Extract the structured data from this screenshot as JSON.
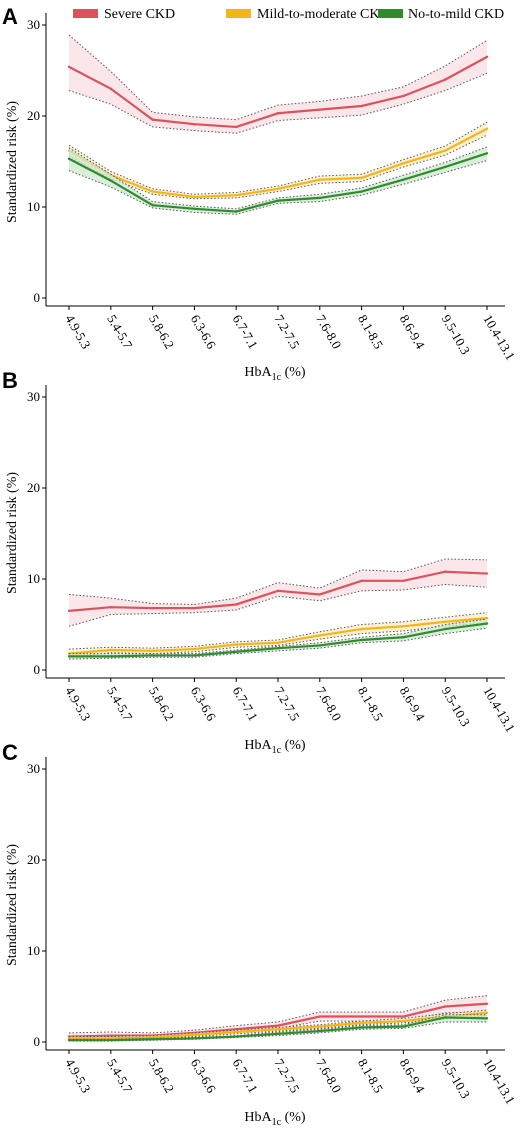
{
  "chart_data": [
    {
      "type": "line",
      "panel_label": "A",
      "categories": [
        "4.9-5.3",
        "5.4-5.7",
        "5.8-6.2",
        "6.3-6.6",
        "6.7-7.1",
        "7.2-7.5",
        "7.6-8.0",
        "8.1-8.5",
        "8.6-9.4",
        "9.5-10.3",
        "10.4-13.1"
      ],
      "xlabel": "HbA1c (%)",
      "xlabel_main": "HbA",
      "xlabel_sub": "1c",
      "xlabel_unit": " (%)",
      "ylabel": "Standardized risk (%)",
      "ylim": [
        0,
        30
      ],
      "yticks": [
        0,
        10,
        20,
        30
      ],
      "legend": "top",
      "series": [
        {
          "name": "Severe CKD",
          "color": "#d9545e",
          "band_color": "#f9dde2",
          "values": [
            25.4,
            23.0,
            19.6,
            19.1,
            18.8,
            20.3,
            20.7,
            21.1,
            22.2,
            24.0,
            26.5
          ],
          "lower": [
            22.8,
            21.3,
            18.8,
            18.4,
            18.1,
            19.5,
            19.8,
            20.1,
            21.3,
            22.8,
            24.7
          ],
          "upper": [
            28.9,
            24.9,
            20.4,
            19.9,
            19.6,
            21.2,
            21.6,
            22.2,
            23.2,
            25.5,
            28.3
          ]
        },
        {
          "name": "Mild-to-moderate CKD",
          "color": "#f2b51d",
          "band_color": "#fbeec4",
          "values": [
            16.2,
            13.5,
            11.7,
            11.1,
            11.3,
            12.0,
            13.0,
            13.2,
            14.8,
            16.2,
            18.6
          ],
          "lower": [
            15.6,
            13.1,
            11.4,
            10.9,
            11.0,
            11.7,
            12.6,
            12.8,
            14.4,
            15.7,
            17.9
          ],
          "upper": [
            16.8,
            13.9,
            12.0,
            11.4,
            11.6,
            12.3,
            13.4,
            13.6,
            15.2,
            16.7,
            19.3
          ]
        },
        {
          "name": "No-to-mild CKD",
          "color": "#2e8b2e",
          "band_color": "#cfe7cf",
          "values": [
            15.3,
            12.9,
            10.2,
            9.8,
            9.5,
            10.7,
            11.0,
            11.7,
            13.0,
            14.4,
            15.9
          ],
          "lower": [
            14.0,
            12.2,
            9.9,
            9.4,
            9.2,
            10.4,
            10.6,
            11.3,
            12.5,
            13.8,
            15.1
          ],
          "upper": [
            16.5,
            13.6,
            10.6,
            10.1,
            9.8,
            11.0,
            11.4,
            12.1,
            13.5,
            14.9,
            16.6
          ]
        }
      ]
    },
    {
      "type": "line",
      "panel_label": "B",
      "categories": [
        "4.9-5.3",
        "5.4-5.7",
        "5.8-6.2",
        "6.3-6.6",
        "6.7-7.1",
        "7.2-7.5",
        "7.6-8.0",
        "8.1-8.5",
        "8.6-9.4",
        "9.5-10.3",
        "10.4-13.1"
      ],
      "xlabel": "HbA1c (%)",
      "xlabel_main": "HbA",
      "xlabel_sub": "1c",
      "xlabel_unit": " (%)",
      "ylabel": "Standardized risk (%)",
      "ylim": [
        0,
        30
      ],
      "yticks": [
        0,
        10,
        20,
        30
      ],
      "series": [
        {
          "name": "Severe CKD",
          "color": "#d9545e",
          "band_color": "#f9dde2",
          "values": [
            6.5,
            6.9,
            6.8,
            6.8,
            7.2,
            8.7,
            8.3,
            9.8,
            9.8,
            10.8,
            10.6
          ],
          "lower": [
            4.8,
            6.1,
            6.2,
            6.3,
            6.6,
            8.1,
            7.6,
            8.7,
            8.8,
            9.4,
            9.1
          ],
          "upper": [
            8.3,
            7.9,
            7.3,
            7.2,
            7.9,
            9.6,
            9.0,
            11.0,
            10.8,
            12.2,
            12.1
          ]
        },
        {
          "name": "Mild-to-moderate CKD",
          "color": "#f2b51d",
          "band_color": "#fbeec4",
          "values": [
            1.8,
            2.2,
            2.1,
            2.3,
            2.8,
            3.0,
            3.8,
            4.5,
            4.8,
            5.3,
            5.7
          ],
          "lower": [
            1.4,
            1.9,
            1.8,
            2.0,
            2.5,
            2.7,
            3.4,
            4.0,
            4.3,
            4.8,
            5.2
          ],
          "upper": [
            2.3,
            2.5,
            2.4,
            2.6,
            3.1,
            3.3,
            4.2,
            5.0,
            5.3,
            5.8,
            6.3
          ]
        },
        {
          "name": "No-to-mild CKD",
          "color": "#2e8b2e",
          "band_color": "#cfe7cf",
          "values": [
            1.5,
            1.5,
            1.6,
            1.6,
            2.0,
            2.4,
            2.7,
            3.3,
            3.6,
            4.5,
            5.1
          ],
          "lower": [
            1.2,
            1.3,
            1.4,
            1.4,
            1.8,
            2.1,
            2.4,
            3.0,
            3.2,
            4.0,
            4.6
          ],
          "upper": [
            1.8,
            1.8,
            1.8,
            1.8,
            2.2,
            2.6,
            3.0,
            3.6,
            4.0,
            5.0,
            5.6
          ]
        }
      ]
    },
    {
      "type": "line",
      "panel_label": "C",
      "categories": [
        "4.9-5.3",
        "5.4-5.7",
        "5.8-6.2",
        "6.3-6.6",
        "6.7-7.1",
        "7.2-7.5",
        "7.6-8.0",
        "8.1-8.5",
        "8.6-9.4",
        "9.5-10.3",
        "10.4-13.1"
      ],
      "xlabel": "HbA1c (%)",
      "xlabel_main": "HbA",
      "xlabel_sub": "1c",
      "xlabel_unit": " (%)",
      "ylabel": "Standardized risk (%)",
      "ylim": [
        0,
        30
      ],
      "yticks": [
        0,
        10,
        20,
        30
      ],
      "series": [
        {
          "name": "Severe CKD",
          "color": "#d9545e",
          "band_color": "#f9dde2",
          "values": [
            0.6,
            0.7,
            0.7,
            1.0,
            1.4,
            1.8,
            2.8,
            2.8,
            2.8,
            3.9,
            4.2
          ],
          "lower": [
            0.3,
            0.4,
            0.4,
            0.7,
            1.1,
            1.5,
            2.3,
            2.3,
            2.3,
            3.2,
            3.3
          ],
          "upper": [
            1.0,
            1.1,
            1.0,
            1.3,
            1.8,
            2.2,
            3.3,
            3.3,
            3.3,
            4.6,
            5.1
          ]
        },
        {
          "name": "Mild-to-moderate CKD",
          "color": "#f2b51d",
          "band_color": "#fbeec4",
          "values": [
            0.4,
            0.4,
            0.5,
            0.8,
            1.1,
            1.4,
            1.7,
            2.1,
            2.3,
            2.8,
            3.2
          ],
          "lower": [
            0.2,
            0.3,
            0.4,
            0.6,
            0.9,
            1.2,
            1.5,
            1.9,
            2.1,
            2.5,
            2.9
          ],
          "upper": [
            0.6,
            0.6,
            0.7,
            1.0,
            1.3,
            1.6,
            1.9,
            2.3,
            2.6,
            3.1,
            3.5
          ]
        },
        {
          "name": "No-to-mild CKD",
          "color": "#2e8b2e",
          "band_color": "#cfe7cf",
          "values": [
            0.2,
            0.2,
            0.3,
            0.4,
            0.6,
            0.9,
            1.2,
            1.6,
            1.7,
            2.7,
            2.6
          ],
          "lower": [
            0.1,
            0.1,
            0.2,
            0.3,
            0.5,
            0.7,
            1.0,
            1.4,
            1.5,
            2.2,
            2.2
          ],
          "upper": [
            0.3,
            0.3,
            0.4,
            0.5,
            0.7,
            1.1,
            1.4,
            1.8,
            1.9,
            3.0,
            3.0
          ]
        }
      ]
    }
  ]
}
